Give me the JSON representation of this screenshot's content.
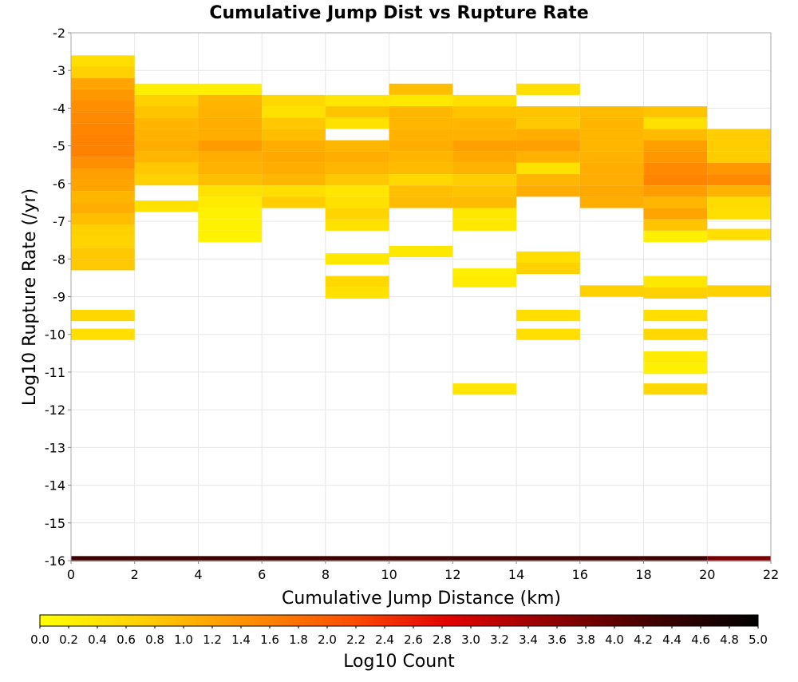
{
  "chart_data": {
    "type": "heatmap",
    "title": "Cumulative Jump Dist vs Rupture Rate",
    "xlabel": "Cumulative Jump Distance (km)",
    "ylabel": "Log10 Rupture Rate (/yr)",
    "colorbar_label": "Log10 Count",
    "xlim": [
      0,
      22
    ],
    "ylim": [
      -16,
      -2
    ],
    "x_ticks": [
      "0",
      "2",
      "4",
      "6",
      "8",
      "10",
      "12",
      "14",
      "16",
      "18",
      "20",
      "22"
    ],
    "y_ticks": [
      "-2",
      "-3",
      "-4",
      "-5",
      "-6",
      "-7",
      "-8",
      "-9",
      "-10",
      "-11",
      "-12",
      "-13",
      "-14",
      "-15",
      "-16"
    ],
    "colorbar_range": [
      0.0,
      5.0
    ],
    "colorbar_ticks": [
      "0.0",
      "0.2",
      "0.4",
      "0.6",
      "0.8",
      "1.0",
      "1.2",
      "1.4",
      "1.6",
      "1.8",
      "2.0",
      "2.2",
      "2.4",
      "2.6",
      "2.8",
      "3.0",
      "3.2",
      "3.4",
      "3.6",
      "3.8",
      "4.0",
      "4.2",
      "4.4",
      "4.6",
      "4.8",
      "5.0"
    ],
    "colorscale": [
      "#ffff00",
      "#ffd000",
      "#ff9000",
      "#ff5000",
      "#e00000",
      "#900000",
      "#400000",
      "#000000"
    ],
    "grid": true,
    "x_bin_width": 2,
    "y_bin_height": 0.3,
    "columns": [
      {
        "x": 0,
        "cells": [
          [
            -2.75,
            0.5
          ],
          [
            -3.05,
            0.7
          ],
          [
            -3.35,
            1.2
          ],
          [
            -3.65,
            1.35
          ],
          [
            -3.95,
            1.45
          ],
          [
            -4.25,
            1.5
          ],
          [
            -4.55,
            1.55
          ],
          [
            -4.85,
            1.6
          ],
          [
            -5.15,
            1.6
          ],
          [
            -5.45,
            1.45
          ],
          [
            -5.75,
            1.25
          ],
          [
            -6.05,
            1.2
          ],
          [
            -6.35,
            1.0
          ],
          [
            -6.65,
            1.1
          ],
          [
            -6.95,
            0.9
          ],
          [
            -7.25,
            0.7
          ],
          [
            -7.55,
            0.65
          ],
          [
            -7.85,
            0.8
          ],
          [
            -8.15,
            0.8
          ],
          [
            -9.5,
            0.6
          ],
          [
            -10.0,
            0.5
          ]
        ]
      },
      {
        "x": 2,
        "cells": [
          [
            -3.5,
            0.25
          ],
          [
            -3.8,
            0.7
          ],
          [
            -4.1,
            0.85
          ],
          [
            -4.4,
            1.0
          ],
          [
            -4.7,
            1.05
          ],
          [
            -5.0,
            1.1
          ],
          [
            -5.3,
            1.0
          ],
          [
            -5.6,
            0.8
          ],
          [
            -5.9,
            0.7
          ],
          [
            -6.6,
            0.45
          ]
        ]
      },
      {
        "x": 4,
        "cells": [
          [
            -3.5,
            0.25
          ],
          [
            -3.8,
            1.0
          ],
          [
            -4.1,
            1.05
          ],
          [
            -4.4,
            1.1
          ],
          [
            -4.7,
            1.1
          ],
          [
            -5.0,
            1.3
          ],
          [
            -5.3,
            1.1
          ],
          [
            -5.6,
            1.05
          ],
          [
            -5.9,
            0.9
          ],
          [
            -6.2,
            0.45
          ],
          [
            -6.5,
            0.3
          ],
          [
            -6.8,
            0.2
          ],
          [
            -7.1,
            0.2
          ],
          [
            -7.4,
            0.2
          ]
        ]
      },
      {
        "x": 6,
        "cells": [
          [
            -3.8,
            0.6
          ],
          [
            -4.1,
            0.45
          ],
          [
            -4.4,
            0.8
          ],
          [
            -4.7,
            0.9
          ],
          [
            -5.0,
            1.1
          ],
          [
            -5.3,
            1.15
          ],
          [
            -5.6,
            1.1
          ],
          [
            -5.9,
            1.0
          ],
          [
            -6.2,
            0.5
          ],
          [
            -6.5,
            0.75
          ]
        ]
      },
      {
        "x": 8,
        "cells": [
          [
            -3.8,
            0.4
          ],
          [
            -4.1,
            0.85
          ],
          [
            -4.4,
            0.45
          ],
          [
            -5.0,
            1.0
          ],
          [
            -5.3,
            1.1
          ],
          [
            -5.6,
            1.0
          ],
          [
            -5.9,
            0.8
          ],
          [
            -6.2,
            0.4
          ],
          [
            -6.5,
            0.45
          ],
          [
            -6.8,
            0.65
          ],
          [
            -7.1,
            0.45
          ],
          [
            -8.0,
            0.35
          ],
          [
            -8.6,
            0.6
          ],
          [
            -8.9,
            0.45
          ]
        ]
      },
      {
        "x": 10,
        "cells": [
          [
            -3.5,
            0.9
          ],
          [
            -3.8,
            0.35
          ],
          [
            -4.1,
            1.0
          ],
          [
            -4.4,
            1.0
          ],
          [
            -4.7,
            1.05
          ],
          [
            -5.0,
            1.1
          ],
          [
            -5.3,
            1.0
          ],
          [
            -5.6,
            0.95
          ],
          [
            -5.9,
            0.6
          ],
          [
            -6.2,
            0.9
          ],
          [
            -6.5,
            0.95
          ],
          [
            -7.8,
            0.35
          ]
        ]
      },
      {
        "x": 12,
        "cells": [
          [
            -3.8,
            0.5
          ],
          [
            -4.1,
            0.85
          ],
          [
            -4.4,
            1.0
          ],
          [
            -4.7,
            1.05
          ],
          [
            -5.0,
            1.25
          ],
          [
            -5.3,
            1.15
          ],
          [
            -5.6,
            1.05
          ],
          [
            -5.9,
            0.75
          ],
          [
            -6.2,
            0.85
          ],
          [
            -6.5,
            0.95
          ],
          [
            -6.8,
            0.35
          ],
          [
            -7.1,
            0.35
          ],
          [
            -8.4,
            0.25
          ],
          [
            -8.6,
            0.3
          ],
          [
            -11.45,
            0.4
          ]
        ]
      },
      {
        "x": 14,
        "cells": [
          [
            -3.5,
            0.5
          ],
          [
            -4.1,
            0.85
          ],
          [
            -4.4,
            0.8
          ],
          [
            -4.7,
            1.1
          ],
          [
            -5.0,
            1.25
          ],
          [
            -5.3,
            1.05
          ],
          [
            -5.6,
            0.45
          ],
          [
            -5.9,
            1.0
          ],
          [
            -6.2,
            1.1
          ],
          [
            -7.95,
            0.5
          ],
          [
            -8.25,
            0.7
          ],
          [
            -9.5,
            0.5
          ],
          [
            -10.0,
            0.5
          ]
        ]
      },
      {
        "x": 16,
        "cells": [
          [
            -4.1,
            0.95
          ],
          [
            -4.4,
            1.0
          ],
          [
            -4.7,
            1.0
          ],
          [
            -5.0,
            1.0
          ],
          [
            -5.3,
            1.05
          ],
          [
            -5.6,
            1.1
          ],
          [
            -5.9,
            1.1
          ],
          [
            -6.2,
            1.15
          ],
          [
            -6.5,
            1.1
          ],
          [
            -8.85,
            0.7
          ]
        ]
      },
      {
        "x": 18,
        "cells": [
          [
            -4.1,
            0.85
          ],
          [
            -4.4,
            0.45
          ],
          [
            -4.7,
            0.95
          ],
          [
            -5.0,
            1.25
          ],
          [
            -5.3,
            1.35
          ],
          [
            -5.6,
            1.5
          ],
          [
            -5.9,
            1.55
          ],
          [
            -6.2,
            1.3
          ],
          [
            -6.5,
            1.0
          ],
          [
            -6.8,
            1.2
          ],
          [
            -7.1,
            0.85
          ],
          [
            -7.4,
            0.25
          ],
          [
            -8.6,
            0.35
          ],
          [
            -8.9,
            0.7
          ],
          [
            -9.5,
            0.5
          ],
          [
            -10.0,
            0.6
          ],
          [
            -10.6,
            0.3
          ],
          [
            -10.9,
            0.25
          ],
          [
            -11.45,
            0.6
          ]
        ]
      },
      {
        "x": 20,
        "cells": [
          [
            -4.7,
            0.75
          ],
          [
            -5.0,
            0.75
          ],
          [
            -5.3,
            0.75
          ],
          [
            -5.6,
            1.35
          ],
          [
            -5.9,
            1.5
          ],
          [
            -6.2,
            1.05
          ],
          [
            -6.5,
            0.55
          ],
          [
            -6.8,
            0.5
          ],
          [
            -7.35,
            0.5
          ],
          [
            -8.85,
            0.7
          ]
        ]
      }
    ],
    "bottom_row": {
      "y": -16,
      "segments": [
        [
          0,
          20,
          4.3
        ],
        [
          20,
          22,
          3.8
        ]
      ]
    }
  }
}
